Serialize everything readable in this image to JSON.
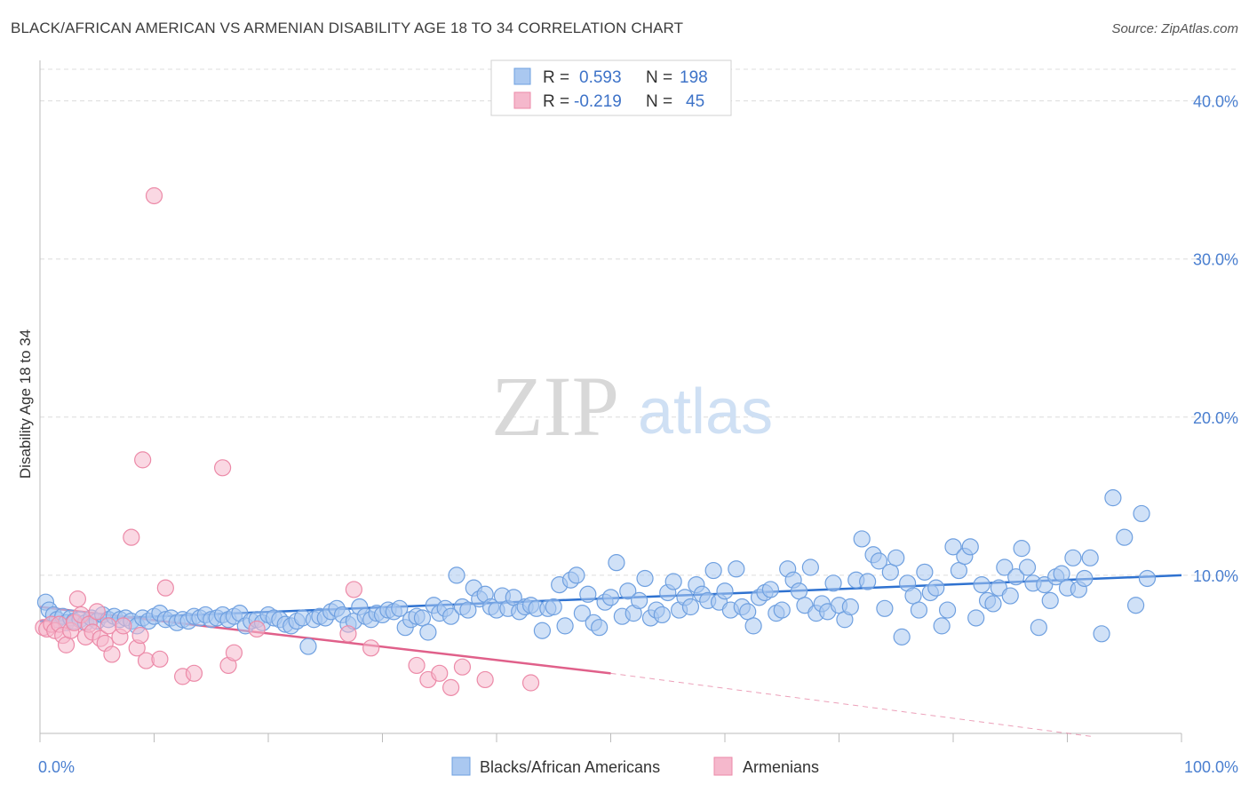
{
  "header": {
    "title": "BLACK/AFRICAN AMERICAN VS ARMENIAN DISABILITY AGE 18 TO 34 CORRELATION CHART",
    "source": "Source: ZipAtlas.com"
  },
  "watermark": {
    "zip": "ZIP",
    "atlas": "atlas"
  },
  "legend": {
    "rows": [
      {
        "r_label": "R =",
        "r_value": "0.593",
        "n_label": "N =",
        "n_value": "198",
        "color": "#aac8f0"
      },
      {
        "r_label": "R =",
        "r_value": "-0.219",
        "n_label": "N =",
        "n_value": "45",
        "color": "#f5b8cc"
      }
    ]
  },
  "bottom_legend": {
    "items": [
      {
        "label": "Blacks/African Americans",
        "color": "#aac8f0"
      },
      {
        "label": "Armenians",
        "color": "#f5b8cc"
      }
    ]
  },
  "chart_data": {
    "type": "scatter",
    "title": "BLACK/AFRICAN AMERICAN VS ARMENIAN DISABILITY AGE 18 TO 34 CORRELATION CHART",
    "ylabel": "Disability Age 18 to 34",
    "xlabel": "",
    "xlim": [
      0,
      100
    ],
    "ylim": [
      0,
      42
    ],
    "x_tick_labels": [
      "0.0%",
      "100.0%"
    ],
    "y_ticks": [
      10,
      20,
      30,
      40
    ],
    "y_tick_labels": [
      "10.0%",
      "20.0%",
      "30.0%",
      "40.0%"
    ],
    "grid": "horizontal dashed",
    "legend_position": "top-center",
    "colors": {
      "blue": "#6fa0e0",
      "blue_fill": "#aac8f0",
      "blue_line": "#2f72d0",
      "pink": "#ec8aa8",
      "pink_fill": "#f5b8cc",
      "pink_line": "#e0608a"
    },
    "series": [
      {
        "name": "Blacks/African Americans",
        "trend": {
          "x0": 0,
          "y0": 7.1,
          "x1": 100,
          "y1": 10.0
        },
        "points": [
          [
            0.5,
            8.3
          ],
          [
            0.8,
            7.8
          ],
          [
            1.2,
            7.5
          ],
          [
            1.5,
            7.2
          ],
          [
            2,
            7.4
          ],
          [
            2.3,
            7.0
          ],
          [
            2.7,
            7.3
          ],
          [
            3,
            7.1
          ],
          [
            3.5,
            7.2
          ],
          [
            4,
            7.0
          ],
          [
            4.5,
            7.3
          ],
          [
            5,
            7.1
          ],
          [
            5.5,
            7.5
          ],
          [
            6,
            7.2
          ],
          [
            6.5,
            7.4
          ],
          [
            7,
            7.2
          ],
          [
            7.5,
            7.3
          ],
          [
            8,
            7.1
          ],
          [
            8.5,
            6.8
          ],
          [
            9,
            7.3
          ],
          [
            9.5,
            7.1
          ],
          [
            10,
            7.4
          ],
          [
            10.5,
            7.6
          ],
          [
            11,
            7.2
          ],
          [
            11.5,
            7.3
          ],
          [
            12,
            7.0
          ],
          [
            12.5,
            7.2
          ],
          [
            13,
            7.1
          ],
          [
            13.5,
            7.4
          ],
          [
            14,
            7.3
          ],
          [
            14.5,
            7.5
          ],
          [
            15,
            7.2
          ],
          [
            15.5,
            7.3
          ],
          [
            16,
            7.5
          ],
          [
            16.5,
            7.2
          ],
          [
            17,
            7.4
          ],
          [
            17.5,
            7.6
          ],
          [
            18,
            6.8
          ],
          [
            18.5,
            7.1
          ],
          [
            19,
            7.2
          ],
          [
            19.5,
            7.0
          ],
          [
            20,
            7.5
          ],
          [
            20.5,
            7.3
          ],
          [
            21,
            7.2
          ],
          [
            21.5,
            6.9
          ],
          [
            22,
            6.8
          ],
          [
            22.5,
            7.1
          ],
          [
            23,
            7.3
          ],
          [
            23.5,
            5.5
          ],
          [
            24,
            7.2
          ],
          [
            24.5,
            7.4
          ],
          [
            25,
            7.3
          ],
          [
            25.5,
            7.7
          ],
          [
            26,
            7.9
          ],
          [
            26.5,
            7.5
          ],
          [
            27,
            6.9
          ],
          [
            27.5,
            7.1
          ],
          [
            28,
            8.0
          ],
          [
            28.5,
            7.4
          ],
          [
            29,
            7.2
          ],
          [
            29.5,
            7.6
          ],
          [
            30,
            7.5
          ],
          [
            30.5,
            7.8
          ],
          [
            31,
            7.7
          ],
          [
            31.5,
            7.9
          ],
          [
            32,
            6.7
          ],
          [
            32.5,
            7.2
          ],
          [
            33,
            7.4
          ],
          [
            33.5,
            7.3
          ],
          [
            34,
            6.4
          ],
          [
            34.5,
            8.1
          ],
          [
            35,
            7.6
          ],
          [
            35.5,
            7.9
          ],
          [
            36,
            7.4
          ],
          [
            36.5,
            10.0
          ],
          [
            37,
            8.0
          ],
          [
            37.5,
            7.8
          ],
          [
            38,
            9.2
          ],
          [
            38.5,
            8.5
          ],
          [
            39,
            8.8
          ],
          [
            39.5,
            8.0
          ],
          [
            40,
            7.8
          ],
          [
            40.5,
            8.7
          ],
          [
            41,
            7.9
          ],
          [
            41.5,
            8.6
          ],
          [
            42,
            7.7
          ],
          [
            42.5,
            8.0
          ],
          [
            43,
            8.1
          ],
          [
            43.5,
            7.9
          ],
          [
            44,
            6.5
          ],
          [
            44.5,
            7.9
          ],
          [
            45,
            8.0
          ],
          [
            45.5,
            9.4
          ],
          [
            46,
            6.8
          ],
          [
            46.5,
            9.7
          ],
          [
            47,
            10.0
          ],
          [
            47.5,
            7.6
          ],
          [
            48,
            8.8
          ],
          [
            48.5,
            7.0
          ],
          [
            49,
            6.7
          ],
          [
            49.5,
            8.3
          ],
          [
            50,
            8.6
          ],
          [
            50.5,
            10.8
          ],
          [
            51,
            7.4
          ],
          [
            51.5,
            9.0
          ],
          [
            52,
            7.6
          ],
          [
            52.5,
            8.4
          ],
          [
            53,
            9.8
          ],
          [
            53.5,
            7.3
          ],
          [
            54,
            7.8
          ],
          [
            54.5,
            7.5
          ],
          [
            55,
            8.9
          ],
          [
            55.5,
            9.6
          ],
          [
            56,
            7.8
          ],
          [
            56.5,
            8.6
          ],
          [
            57,
            8.0
          ],
          [
            57.5,
            9.4
          ],
          [
            58,
            8.8
          ],
          [
            58.5,
            8.4
          ],
          [
            59,
            10.3
          ],
          [
            59.5,
            8.3
          ],
          [
            60,
            9.0
          ],
          [
            60.5,
            7.8
          ],
          [
            61,
            10.4
          ],
          [
            61.5,
            8.0
          ],
          [
            62,
            7.7
          ],
          [
            62.5,
            6.8
          ],
          [
            63,
            8.6
          ],
          [
            63.5,
            8.9
          ],
          [
            64,
            9.1
          ],
          [
            64.5,
            7.6
          ],
          [
            65,
            7.8
          ],
          [
            65.5,
            10.4
          ],
          [
            66,
            9.7
          ],
          [
            66.5,
            9.0
          ],
          [
            67,
            8.1
          ],
          [
            67.5,
            10.5
          ],
          [
            68,
            7.6
          ],
          [
            68.5,
            8.2
          ],
          [
            69,
            7.7
          ],
          [
            69.5,
            9.5
          ],
          [
            70,
            8.1
          ],
          [
            70.5,
            7.2
          ],
          [
            71,
            8.0
          ],
          [
            71.5,
            9.7
          ],
          [
            72,
            12.3
          ],
          [
            72.5,
            9.6
          ],
          [
            73,
            11.3
          ],
          [
            73.5,
            10.9
          ],
          [
            74,
            7.9
          ],
          [
            74.5,
            10.2
          ],
          [
            75,
            11.1
          ],
          [
            75.5,
            6.1
          ],
          [
            76,
            9.5
          ],
          [
            76.5,
            8.7
          ],
          [
            77,
            7.8
          ],
          [
            77.5,
            10.2
          ],
          [
            78,
            8.9
          ],
          [
            78.5,
            9.2
          ],
          [
            79,
            6.8
          ],
          [
            79.5,
            7.8
          ],
          [
            80,
            11.8
          ],
          [
            80.5,
            10.3
          ],
          [
            81,
            11.2
          ],
          [
            81.5,
            11.8
          ],
          [
            82,
            7.3
          ],
          [
            82.5,
            9.4
          ],
          [
            83,
            8.4
          ],
          [
            83.5,
            8.2
          ],
          [
            84,
            9.2
          ],
          [
            84.5,
            10.5
          ],
          [
            85,
            8.7
          ],
          [
            85.5,
            9.9
          ],
          [
            86,
            11.7
          ],
          [
            86.5,
            10.5
          ],
          [
            87,
            9.5
          ],
          [
            87.5,
            6.7
          ],
          [
            88,
            9.4
          ],
          [
            88.5,
            8.4
          ],
          [
            89,
            9.9
          ],
          [
            89.5,
            10.1
          ],
          [
            90,
            9.2
          ],
          [
            90.5,
            11.1
          ],
          [
            91,
            9.1
          ],
          [
            91.5,
            9.8
          ],
          [
            92,
            11.1
          ],
          [
            93,
            6.3
          ],
          [
            94,
            14.9
          ],
          [
            95,
            12.4
          ],
          [
            96,
            8.1
          ],
          [
            96.5,
            13.9
          ],
          [
            97,
            9.8
          ]
        ]
      },
      {
        "name": "Armenians",
        "trend": {
          "x0": 0,
          "y0": 8.0,
          "x1": 50,
          "y1": 3.8,
          "dash_to_x": 100,
          "dash_to_y": -0.2
        },
        "points": [
          [
            0.3,
            6.7
          ],
          [
            0.6,
            6.6
          ],
          [
            1,
            6.9
          ],
          [
            1.3,
            6.5
          ],
          [
            1.7,
            6.9
          ],
          [
            2,
            6.2
          ],
          [
            2.3,
            5.6
          ],
          [
            2.7,
            6.5
          ],
          [
            3,
            7.0
          ],
          [
            3.3,
            8.5
          ],
          [
            3.6,
            7.5
          ],
          [
            4,
            6.1
          ],
          [
            4.3,
            6.9
          ],
          [
            4.6,
            6.4
          ],
          [
            5,
            7.7
          ],
          [
            5.3,
            6.0
          ],
          [
            5.7,
            5.7
          ],
          [
            6,
            6.8
          ],
          [
            6.3,
            5.0
          ],
          [
            7,
            6.1
          ],
          [
            7.3,
            6.8
          ],
          [
            8,
            12.4
          ],
          [
            8.5,
            5.4
          ],
          [
            8.8,
            6.2
          ],
          [
            9,
            17.3
          ],
          [
            9.3,
            4.6
          ],
          [
            10,
            34.0
          ],
          [
            10.5,
            4.7
          ],
          [
            11,
            9.2
          ],
          [
            12.5,
            3.6
          ],
          [
            13.5,
            3.8
          ],
          [
            16,
            16.8
          ],
          [
            16.5,
            4.3
          ],
          [
            17,
            5.1
          ],
          [
            19,
            6.6
          ],
          [
            27,
            6.3
          ],
          [
            27.5,
            9.1
          ],
          [
            29,
            5.4
          ],
          [
            33,
            4.3
          ],
          [
            34,
            3.4
          ],
          [
            35,
            3.8
          ],
          [
            36,
            2.9
          ],
          [
            37,
            4.2
          ],
          [
            39,
            3.4
          ],
          [
            43,
            3.2
          ]
        ]
      }
    ]
  }
}
